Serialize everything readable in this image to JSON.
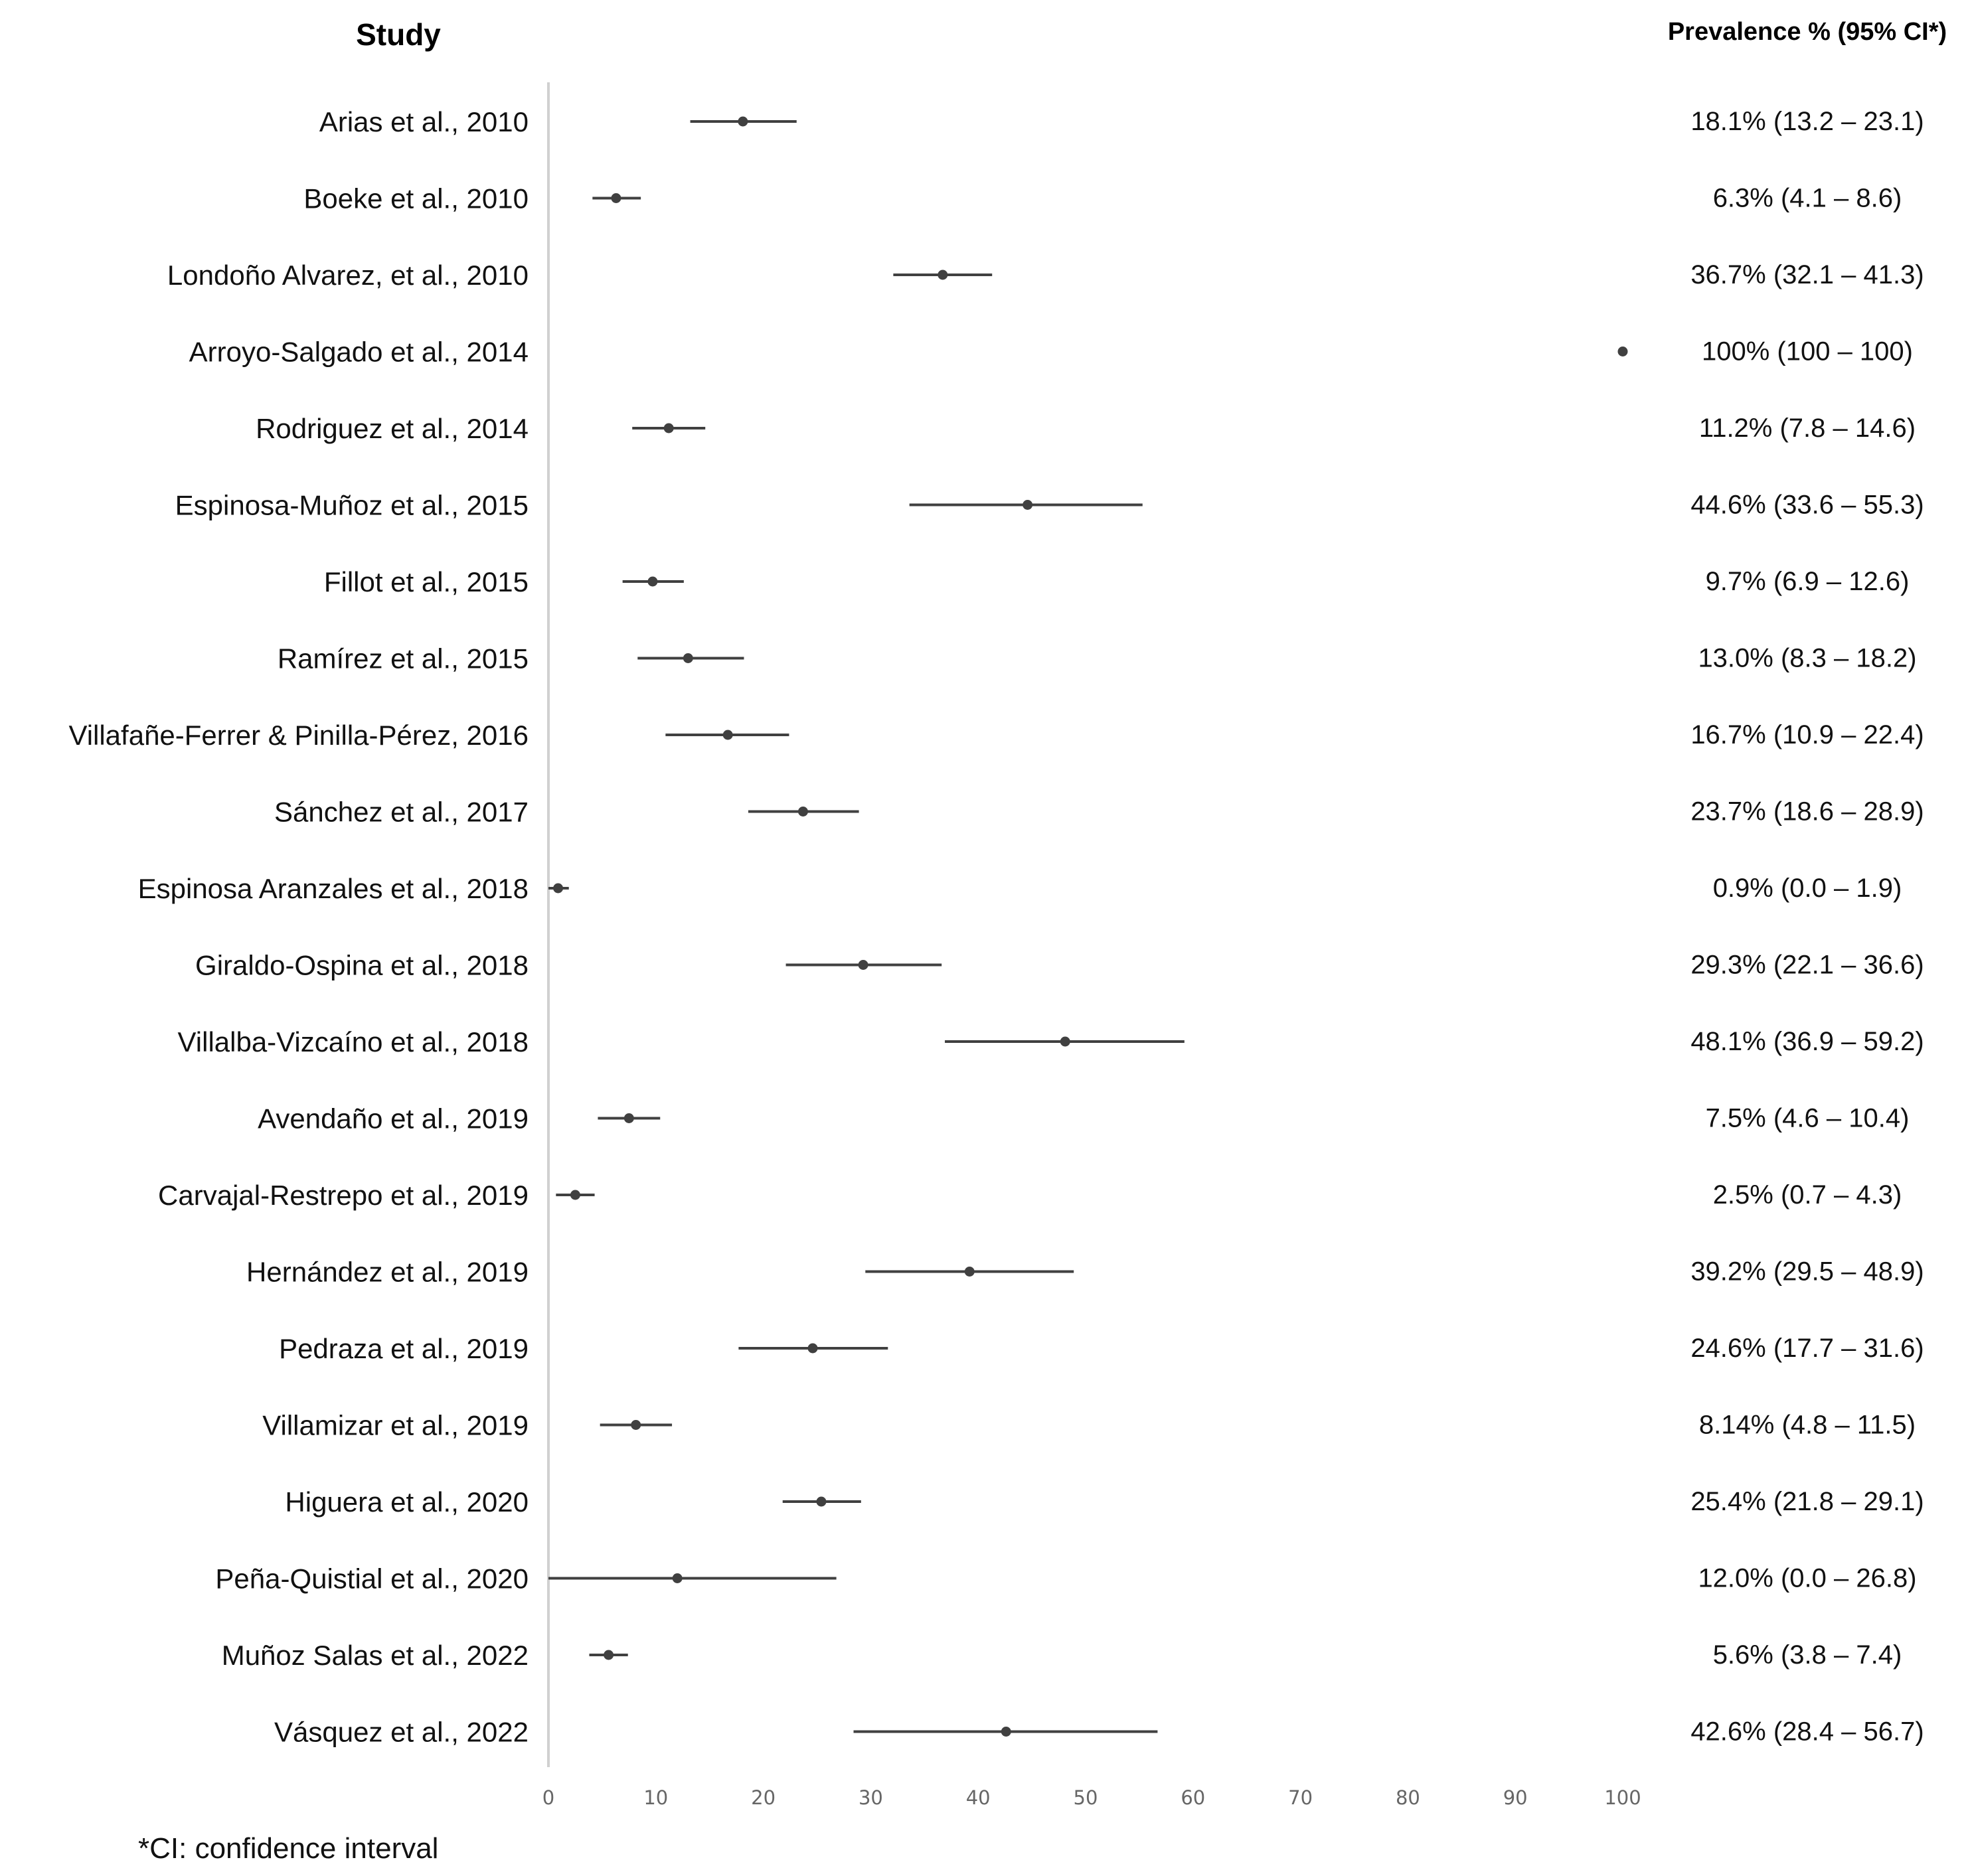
{
  "chart_data": {
    "type": "forest",
    "header_study": "Study",
    "header_prevalence": "Prevalence % (95% CI*)",
    "footnote": "*CI: confidence interval",
    "xlim": [
      0,
      100
    ],
    "xticks": [
      0,
      10,
      20,
      30,
      40,
      50,
      60,
      70,
      80,
      90,
      100
    ],
    "series_color": "#404040",
    "studies": [
      {
        "label": "Arias et al., 2010",
        "estimate": 18.1,
        "lower": 13.2,
        "upper": 23.1,
        "text": "18.1% (13.2 – 23.1)"
      },
      {
        "label": "Boeke et al., 2010",
        "estimate": 6.3,
        "lower": 4.1,
        "upper": 8.6,
        "text": "6.3% (4.1 – 8.6)"
      },
      {
        "label": "Londoño Alvarez, et al., 2010",
        "estimate": 36.7,
        "lower": 32.1,
        "upper": 41.3,
        "text": "36.7% (32.1 – 41.3)"
      },
      {
        "label": "Arroyo-Salgado et al., 2014",
        "estimate": 100,
        "lower": 100,
        "upper": 100,
        "text": "100% (100 – 100)"
      },
      {
        "label": "Rodriguez et al., 2014",
        "estimate": 11.2,
        "lower": 7.8,
        "upper": 14.6,
        "text": "11.2% (7.8 – 14.6)"
      },
      {
        "label": "Espinosa-Muñoz et al., 2015",
        "estimate": 44.6,
        "lower": 33.6,
        "upper": 55.3,
        "text": "44.6% (33.6 – 55.3)"
      },
      {
        "label": "Fillot et al., 2015",
        "estimate": 9.7,
        "lower": 6.9,
        "upper": 12.6,
        "text": "9.7% (6.9 – 12.6)"
      },
      {
        "label": "Ramírez et al., 2015",
        "estimate": 13.0,
        "lower": 8.3,
        "upper": 18.2,
        "text": "13.0% (8.3 – 18.2)"
      },
      {
        "label": "Villafañe-Ferrer & Pinilla-Pérez, 2016",
        "estimate": 16.7,
        "lower": 10.9,
        "upper": 22.4,
        "text": "16.7% (10.9 – 22.4)"
      },
      {
        "label": "Sánchez et al., 2017",
        "estimate": 23.7,
        "lower": 18.6,
        "upper": 28.9,
        "text": "23.7% (18.6 – 28.9)"
      },
      {
        "label": "Espinosa Aranzales et al., 2018",
        "estimate": 0.9,
        "lower": 0.0,
        "upper": 1.9,
        "text": "0.9% (0.0 – 1.9)"
      },
      {
        "label": "Giraldo-Ospina et al., 2018",
        "estimate": 29.3,
        "lower": 22.1,
        "upper": 36.6,
        "text": "29.3% (22.1 – 36.6)"
      },
      {
        "label": "Villalba-Vizcaíno et al., 2018",
        "estimate": 48.1,
        "lower": 36.9,
        "upper": 59.2,
        "text": "48.1% (36.9 – 59.2)"
      },
      {
        "label": "Avendaño et al., 2019",
        "estimate": 7.5,
        "lower": 4.6,
        "upper": 10.4,
        "text": "7.5% (4.6 – 10.4)"
      },
      {
        "label": "Carvajal-Restrepo et al., 2019",
        "estimate": 2.5,
        "lower": 0.7,
        "upper": 4.3,
        "text": "2.5% (0.7 – 4.3)"
      },
      {
        "label": "Hernández et al., 2019",
        "estimate": 39.2,
        "lower": 29.5,
        "upper": 48.9,
        "text": "39.2% (29.5 – 48.9)"
      },
      {
        "label": "Pedraza et al., 2019",
        "estimate": 24.6,
        "lower": 17.7,
        "upper": 31.6,
        "text": "24.6% (17.7 – 31.6)"
      },
      {
        "label": "Villamizar et al., 2019",
        "estimate": 8.14,
        "lower": 4.8,
        "upper": 11.5,
        "text": "8.14% (4.8 – 11.5)"
      },
      {
        "label": "Higuera et al., 2020",
        "estimate": 25.4,
        "lower": 21.8,
        "upper": 29.1,
        "text": "25.4% (21.8 – 29.1)"
      },
      {
        "label": "Peña-Quistial et al., 2020",
        "estimate": 12.0,
        "lower": 0.0,
        "upper": 26.8,
        "text": "12.0% (0.0 – 26.8)"
      },
      {
        "label": "Muñoz Salas et al., 2022",
        "estimate": 5.6,
        "lower": 3.8,
        "upper": 7.4,
        "text": "5.6% (3.8 – 7.4)"
      },
      {
        "label": "Vásquez et al., 2022",
        "estimate": 42.6,
        "lower": 28.4,
        "upper": 56.7,
        "text": "42.6% (28.4 – 56.7)"
      }
    ]
  }
}
